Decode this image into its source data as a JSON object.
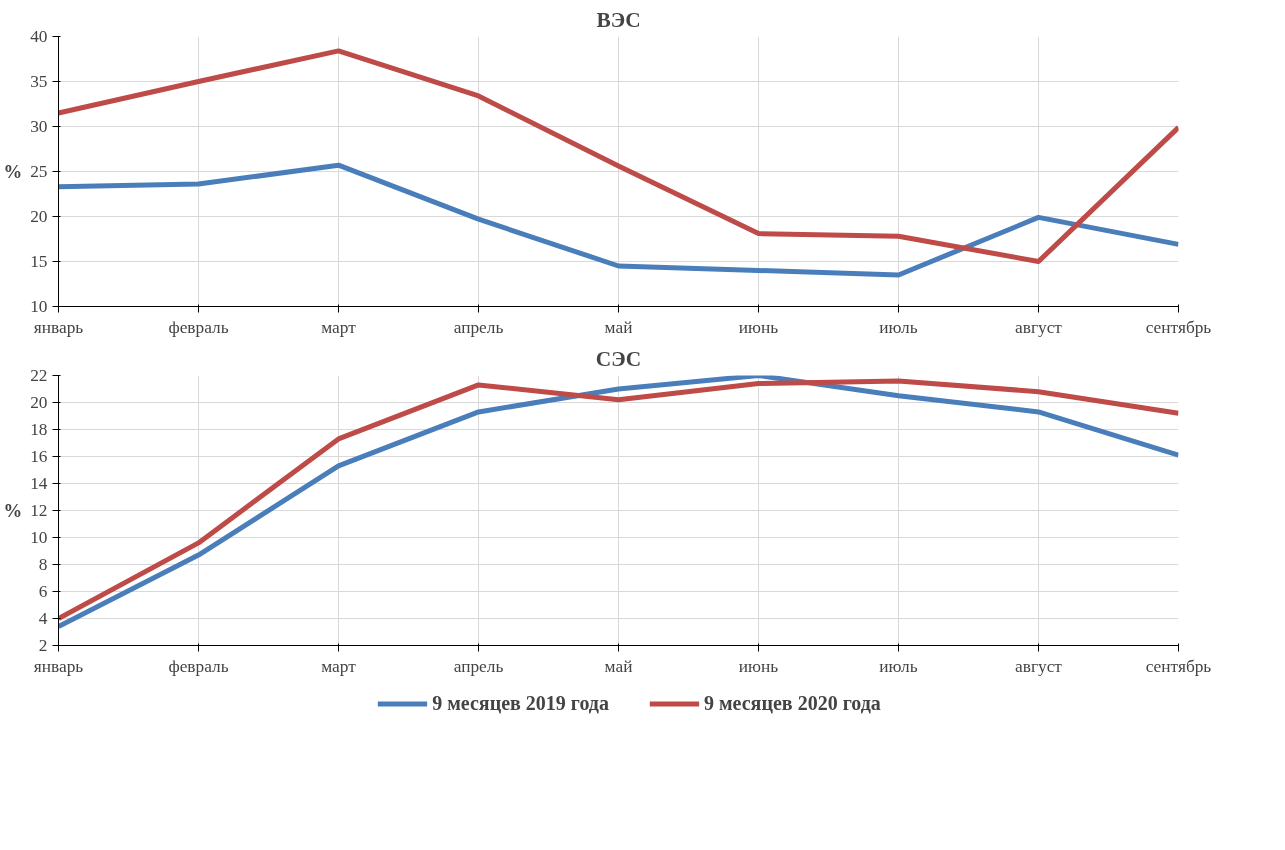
{
  "chart_data": [
    {
      "type": "line",
      "title": "ВЭС",
      "ylabel": "%",
      "categories": [
        "январь",
        "февраль",
        "март",
        "апрель",
        "май",
        "июнь",
        "июль",
        "август",
        "сентябрь"
      ],
      "series": [
        {
          "color": "#4a7ebb",
          "values": [
            23.3,
            23.6,
            25.7,
            19.7,
            14.5,
            14.0,
            13.5,
            19.9,
            16.9
          ]
        },
        {
          "color": "#be4b48",
          "values": [
            31.5,
            35.0,
            38.4,
            33.4,
            25.6,
            18.1,
            17.8,
            15.0,
            29.9
          ]
        }
      ],
      "ylim": [
        10,
        40
      ],
      "yticks": [
        10,
        15,
        20,
        25,
        30,
        35,
        40
      ],
      "grid": true
    },
    {
      "type": "line",
      "title": "СЭС",
      "ylabel": "%",
      "categories": [
        "январь",
        "февраль",
        "март",
        "апрель",
        "май",
        "июнь",
        "июль",
        "август",
        "сентябрь"
      ],
      "series": [
        {
          "name": "9 месяцев 2019 года",
          "color": "#4a7ebb",
          "values": [
            3.4,
            8.7,
            15.3,
            19.3,
            21.0,
            22.0,
            20.5,
            19.3,
            16.1
          ]
        },
        {
          "name": "9 месяцев 2020 года",
          "color": "#be4b48",
          "values": [
            4.0,
            9.6,
            17.3,
            21.3,
            20.2,
            21.4,
            21.6,
            20.8,
            19.2
          ]
        }
      ],
      "ylim": [
        2,
        22
      ],
      "yticks": [
        2,
        4,
        6,
        8,
        10,
        12,
        14,
        16,
        18,
        20,
        22
      ],
      "grid": true,
      "legend": "bottom"
    }
  ]
}
